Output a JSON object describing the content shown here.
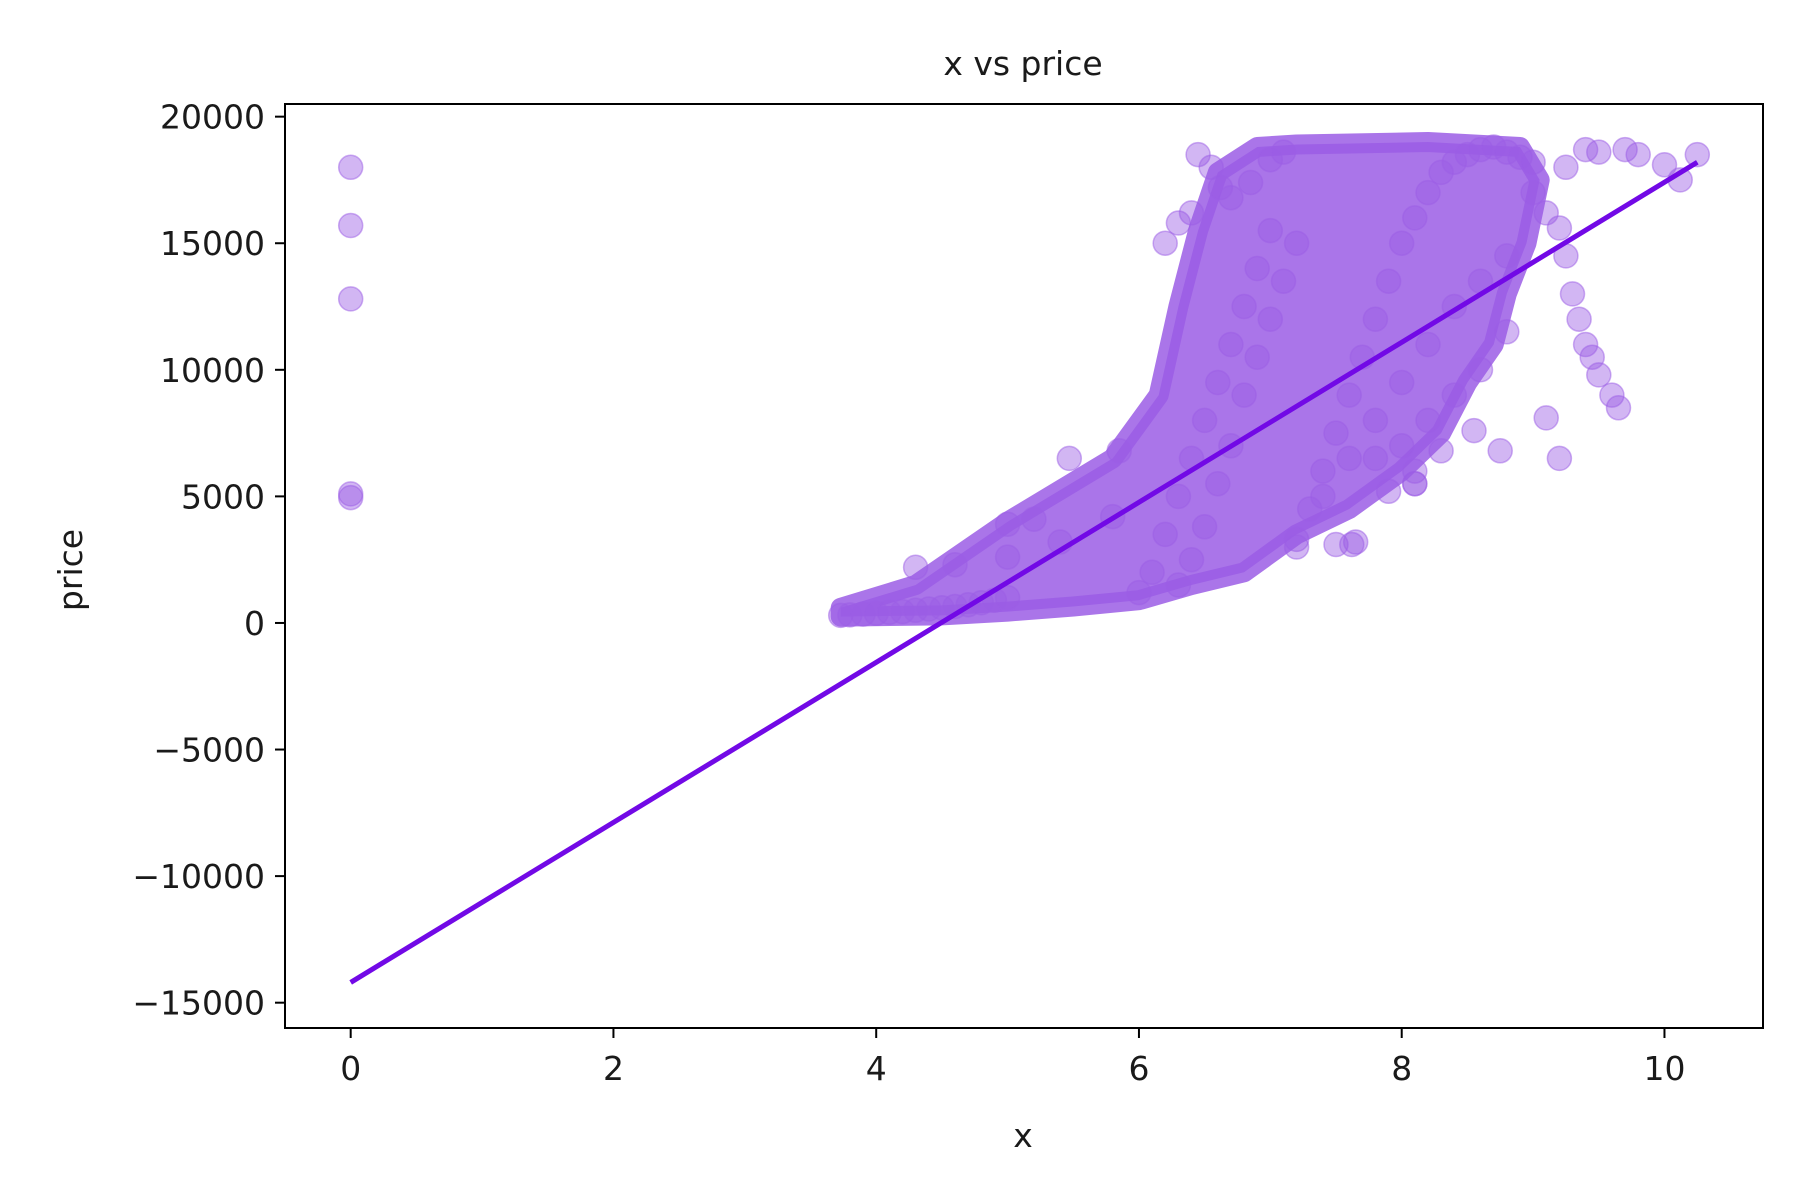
{
  "chart_data": {
    "type": "scatter",
    "title": "x vs price",
    "xlabel": "x",
    "ylabel": "price",
    "xlim": [
      -0.5,
      10.75
    ],
    "ylim": [
      -16000,
      20500
    ],
    "xticks": [
      0,
      2,
      4,
      6,
      8,
      10
    ],
    "xtick_labels": [
      "0",
      "2",
      "4",
      "6",
      "8",
      "10"
    ],
    "yticks": [
      -15000,
      -10000,
      -5000,
      0,
      5000,
      10000,
      15000,
      20000
    ],
    "ytick_labels": [
      "−15000",
      "−10000",
      "−5000",
      "0",
      "5000",
      "10000",
      "15000",
      "20000"
    ],
    "grid": false,
    "point_color": "#9b5de5",
    "point_alpha": 0.45,
    "line_color": "#7209e6",
    "series": [
      {
        "kind": "scatter",
        "x": [
          0,
          0,
          0,
          0,
          0,
          3.73,
          3.8,
          3.9,
          4.0,
          4.1,
          4.2,
          4.3,
          4.4,
          4.5,
          4.6,
          4.7,
          4.8,
          4.9,
          5.0,
          4.3,
          4.6,
          5.0,
          5.4,
          5.8,
          5.47,
          5.85,
          5.0,
          5.2,
          6.0,
          6.1,
          6.2,
          6.3,
          6.4,
          6.5,
          6.6,
          6.7,
          6.8,
          6.9,
          7.0,
          6.3,
          6.4,
          6.5,
          6.6,
          6.7,
          6.8,
          6.9,
          7.0,
          7.1,
          7.2,
          6.45,
          6.55,
          6.62,
          6.7,
          6.85,
          7.0,
          7.1,
          6.2,
          6.3,
          6.4,
          7.2,
          7.3,
          7.4,
          7.5,
          7.6,
          7.7,
          7.8,
          7.9,
          8.0,
          8.1,
          8.2,
          8.3,
          8.4,
          8.5,
          8.6,
          8.7,
          8.8,
          8.9,
          9.0,
          7.4,
          7.6,
          7.8,
          8.0,
          8.2,
          8.4,
          8.6,
          8.8,
          7.2,
          7.5,
          7.9,
          8.1,
          8.0,
          8.2,
          8.4,
          8.6,
          8.8,
          7.8,
          8.1,
          8.3,
          9.0,
          9.1,
          9.2,
          9.25,
          9.3,
          9.35,
          9.4,
          9.45,
          9.5,
          9.6,
          9.65,
          9.1,
          9.2,
          9.8,
          10.0,
          10.12,
          10.25,
          9.4,
          9.5,
          9.7,
          9.25,
          8.75,
          7.65,
          7.62,
          8.1,
          8.55
        ],
        "y": [
          18000,
          15700,
          12800,
          5100,
          4950,
          300,
          320,
          350,
          380,
          420,
          450,
          500,
          550,
          600,
          650,
          720,
          800,
          900,
          1000,
          2200,
          2300,
          2600,
          3200,
          4200,
          6500,
          6800,
          3900,
          4100,
          1200,
          2000,
          3500,
          5000,
          6500,
          8000,
          9500,
          11000,
          12500,
          14000,
          15500,
          1500,
          2500,
          3800,
          5500,
          7000,
          9000,
          10500,
          12000,
          13500,
          15000,
          18500,
          18000,
          17200,
          16800,
          17400,
          18300,
          18600,
          15000,
          15800,
          16200,
          3000,
          4500,
          6000,
          7500,
          9000,
          10500,
          12000,
          13500,
          15000,
          16000,
          17000,
          17800,
          18200,
          18500,
          18700,
          18800,
          18600,
          18400,
          18200,
          5000,
          6500,
          8000,
          9500,
          11000,
          12500,
          13500,
          14500,
          3300,
          3100,
          5200,
          5500,
          7000,
          8000,
          9000,
          10000,
          11500,
          6500,
          6000,
          6800,
          17000,
          16200,
          15600,
          14500,
          13000,
          12000,
          11000,
          10500,
          9800,
          9000,
          8500,
          8100,
          6500,
          18500,
          18100,
          17500,
          18500,
          18700,
          18600,
          18700,
          18000,
          6800,
          3200,
          3100,
          5500,
          7600
        ]
      },
      {
        "kind": "line",
        "x": [
          0,
          10.25
        ],
        "y": [
          -14200,
          18200
        ]
      }
    ]
  }
}
